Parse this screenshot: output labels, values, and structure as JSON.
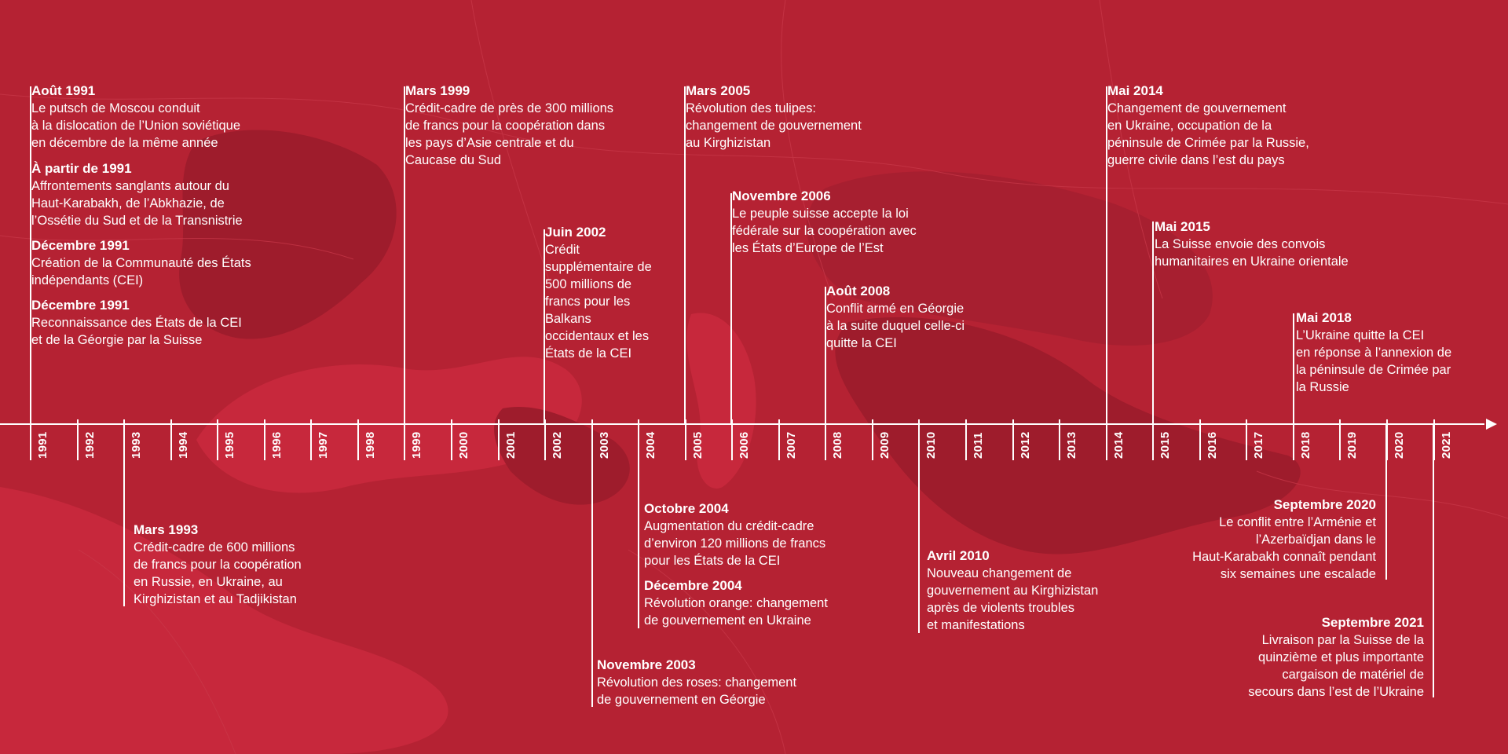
{
  "colors": {
    "background": "#b52233",
    "region_light": "#c7283c",
    "region_dark": "#9e1c2c",
    "text": "#ffffff"
  },
  "axis": {
    "years": [
      "1991",
      "1992",
      "1993",
      "1994",
      "1995",
      "1996",
      "1997",
      "1998",
      "1999",
      "2000",
      "2001",
      "2002",
      "2003",
      "2004",
      "2005",
      "2006",
      "2007",
      "2008",
      "2009",
      "2010",
      "2011",
      "2012",
      "2013",
      "2014",
      "2015",
      "2016",
      "2017",
      "2018",
      "2019",
      "2020",
      "2021"
    ]
  },
  "events_above": [
    {
      "date": "Août 1991",
      "desc": "Le putsch de Moscou conduit\nà la dislocation de l’Union soviétique\nen décembre de la même année"
    },
    {
      "date": "À partir de 1991",
      "desc": "Affrontements sanglants autour du\nHaut-Karabakh, de l’Abkhazie, de\nl’Ossétie du Sud et de la Transnistrie"
    },
    {
      "date": "Décembre 1991",
      "desc": "Création de la Communauté des États\nindépendants (CEI)"
    },
    {
      "date": "Décembre 1991",
      "desc": "Reconnaissance des États de la CEI\net de la Géorgie par la Suisse"
    },
    {
      "date": "Mars 1999",
      "desc": "Crédit-cadre de près de 300 millions\nde francs pour la coopération dans\nles pays d’Asie centrale et du\nCaucase du Sud"
    },
    {
      "date": "Juin 2002",
      "desc": "Crédit\nsupplémentaire de\n500 millions de\nfrancs pour les\nBalkans\noccidentaux et les\nÉtats de la CEI"
    },
    {
      "date": "Mars 2005",
      "desc": "Révolution des tulipes:\nchangement de gouvernement\nau Kirghizistan"
    },
    {
      "date": "Novembre 2006",
      "desc": "Le peuple suisse accepte la loi\nfédérale sur la coopération avec\nles États d’Europe de l’Est"
    },
    {
      "date": "Août 2008",
      "desc": "Conflit armé en Géorgie\nà la suite duquel celle-ci\nquitte la CEI"
    },
    {
      "date": "Mai 2014",
      "desc": "Changement de gouvernement\nen Ukraine, occupation de la\npéninsule de Crimée par la Russie,\nguerre civile dans l’est du pays"
    },
    {
      "date": "Mai 2015",
      "desc": "La Suisse envoie des convois\nhumanitaires en Ukraine orientale"
    },
    {
      "date": "Mai 2018",
      "desc": "L’Ukraine quitte la CEI\nen réponse à l’annexion de\nla péninsule de Crimée par\nla Russie"
    }
  ],
  "events_below": [
    {
      "date": "Mars 1993",
      "desc": "Crédit-cadre de 600 millions\nde francs pour la coopération\nen Russie, en Ukraine, au\nKirghizistan et au Tadjikistan"
    },
    {
      "date": "Novembre 2003",
      "desc": "Révolution des roses: changement\nde gouvernement en Géorgie"
    },
    {
      "date": "Octobre 2004",
      "desc": "Augmentation du crédit-cadre\nd’environ 120 millions de francs\npour les États de la CEI"
    },
    {
      "date": "Décembre 2004",
      "desc": "Révolution orange: changement\nde gouvernement en Ukraine"
    },
    {
      "date": "Avril 2010",
      "desc": "Nouveau changement de\ngouvernement au Kirghizistan\naprès de violents troubles\net manifestations"
    },
    {
      "date": "Septembre 2020",
      "desc": "Le conflit entre l’Arménie et\nl’Azerbaïdjan dans le\nHaut-Karabakh connaît pendant\nsix semaines une escalade"
    },
    {
      "date": "Septembre 2021",
      "desc": "Livraison par la Suisse de la\nquinzième et plus importante\ncargaison de matériel de\nsecours dans l’est de l’Ukraine"
    }
  ]
}
